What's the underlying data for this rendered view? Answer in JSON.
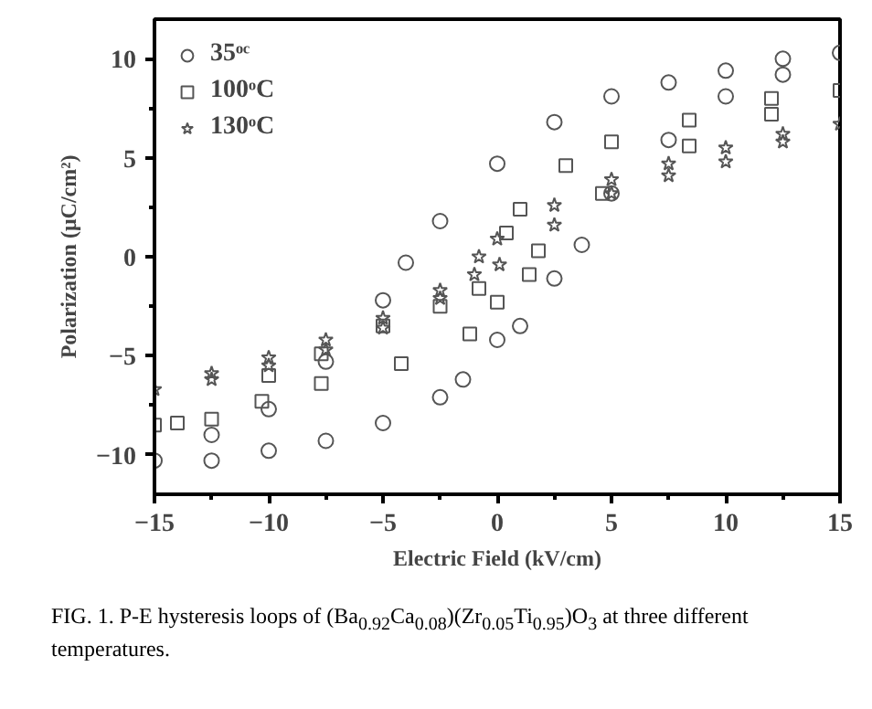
{
  "chart_data": {
    "type": "scatter",
    "xlabel": "Electric Field (kV/cm)",
    "ylabel": "Polarization (μC/cm²)",
    "xlim": [
      -15,
      15
    ],
    "ylim": [
      -12,
      12
    ],
    "xticks": [
      -15,
      -10,
      -5,
      0,
      5,
      10,
      15
    ],
    "yticks": [
      -10,
      -5,
      0,
      5,
      10
    ],
    "grid": false,
    "legend": "top left",
    "annotations": [
      "FIG. 1. P-E hysteresis loops of (Ba$_{0.92}$Ca$_{0.08}$)(Zr$_{0.05}$Ti$_{0.95}$)O$_{3}$ at three different temperatures."
    ],
    "series": [
      {
        "name": "35ᵒᶜ",
        "color": "#555555",
        "marker": "circle",
        "x": [
          0,
          1,
          2.5,
          3.7,
          5,
          7.5,
          10,
          12.5,
          15,
          12.5,
          10,
          7.5,
          5,
          2.5,
          0,
          -2.5,
          -4,
          -5,
          -7.5,
          -10,
          -12.5,
          -15,
          -12.5,
          -10,
          -7.5,
          -5,
          -2.5,
          -1.5
        ],
        "values": [
          -4.2,
          -3.5,
          -1.1,
          0.6,
          3.2,
          5.9,
          8.1,
          9.2,
          10.3,
          10.0,
          9.4,
          8.8,
          8.1,
          6.8,
          4.7,
          1.8,
          -0.3,
          -2.2,
          -5.3,
          -7.7,
          -9.0,
          -10.3,
          -10.3,
          -9.8,
          -9.3,
          -8.4,
          -7.1,
          -6.2
        ]
      },
      {
        "name": "100ᵒC",
        "color": "#555555",
        "marker": "square",
        "x": [
          0,
          1.4,
          1.8,
          4.6,
          8.4,
          12,
          15,
          12,
          8.4,
          5,
          3,
          1,
          0.4,
          -0.8,
          -2.5,
          -5,
          -7.7,
          -10,
          -14,
          -15,
          -12.5,
          -10.3,
          -7.7,
          -4.2,
          -1.2
        ],
        "values": [
          -2.3,
          -0.9,
          0.3,
          3.2,
          5.6,
          7.2,
          8.4,
          8.0,
          6.9,
          5.8,
          4.6,
          2.4,
          1.2,
          -1.6,
          -2.5,
          -3.5,
          -4.9,
          -6.0,
          -8.4,
          -8.5,
          -8.2,
          -7.3,
          -6.4,
          -5.4,
          -3.9
        ]
      },
      {
        "name": "130ᵒC",
        "color": "#555555",
        "marker": "star",
        "x": [
          0.1,
          2.5,
          5,
          7.5,
          10,
          12.5,
          15,
          12.5,
          10,
          7.5,
          5,
          2.5,
          0,
          -0.8,
          -2.5,
          -5,
          -7.5,
          -10,
          -12.5,
          -15,
          -12.5,
          -10,
          -7.5,
          -5,
          -2.5,
          -1
        ],
        "values": [
          -0.4,
          1.6,
          3.2,
          4.1,
          4.8,
          5.8,
          6.7,
          6.2,
          5.5,
          4.7,
          3.9,
          2.6,
          0.9,
          0.0,
          -1.7,
          -3.1,
          -4.2,
          -5.1,
          -5.9,
          -6.7,
          -6.2,
          -5.5,
          -4.7,
          -3.6,
          -2.1,
          -0.9
        ]
      }
    ]
  }
}
